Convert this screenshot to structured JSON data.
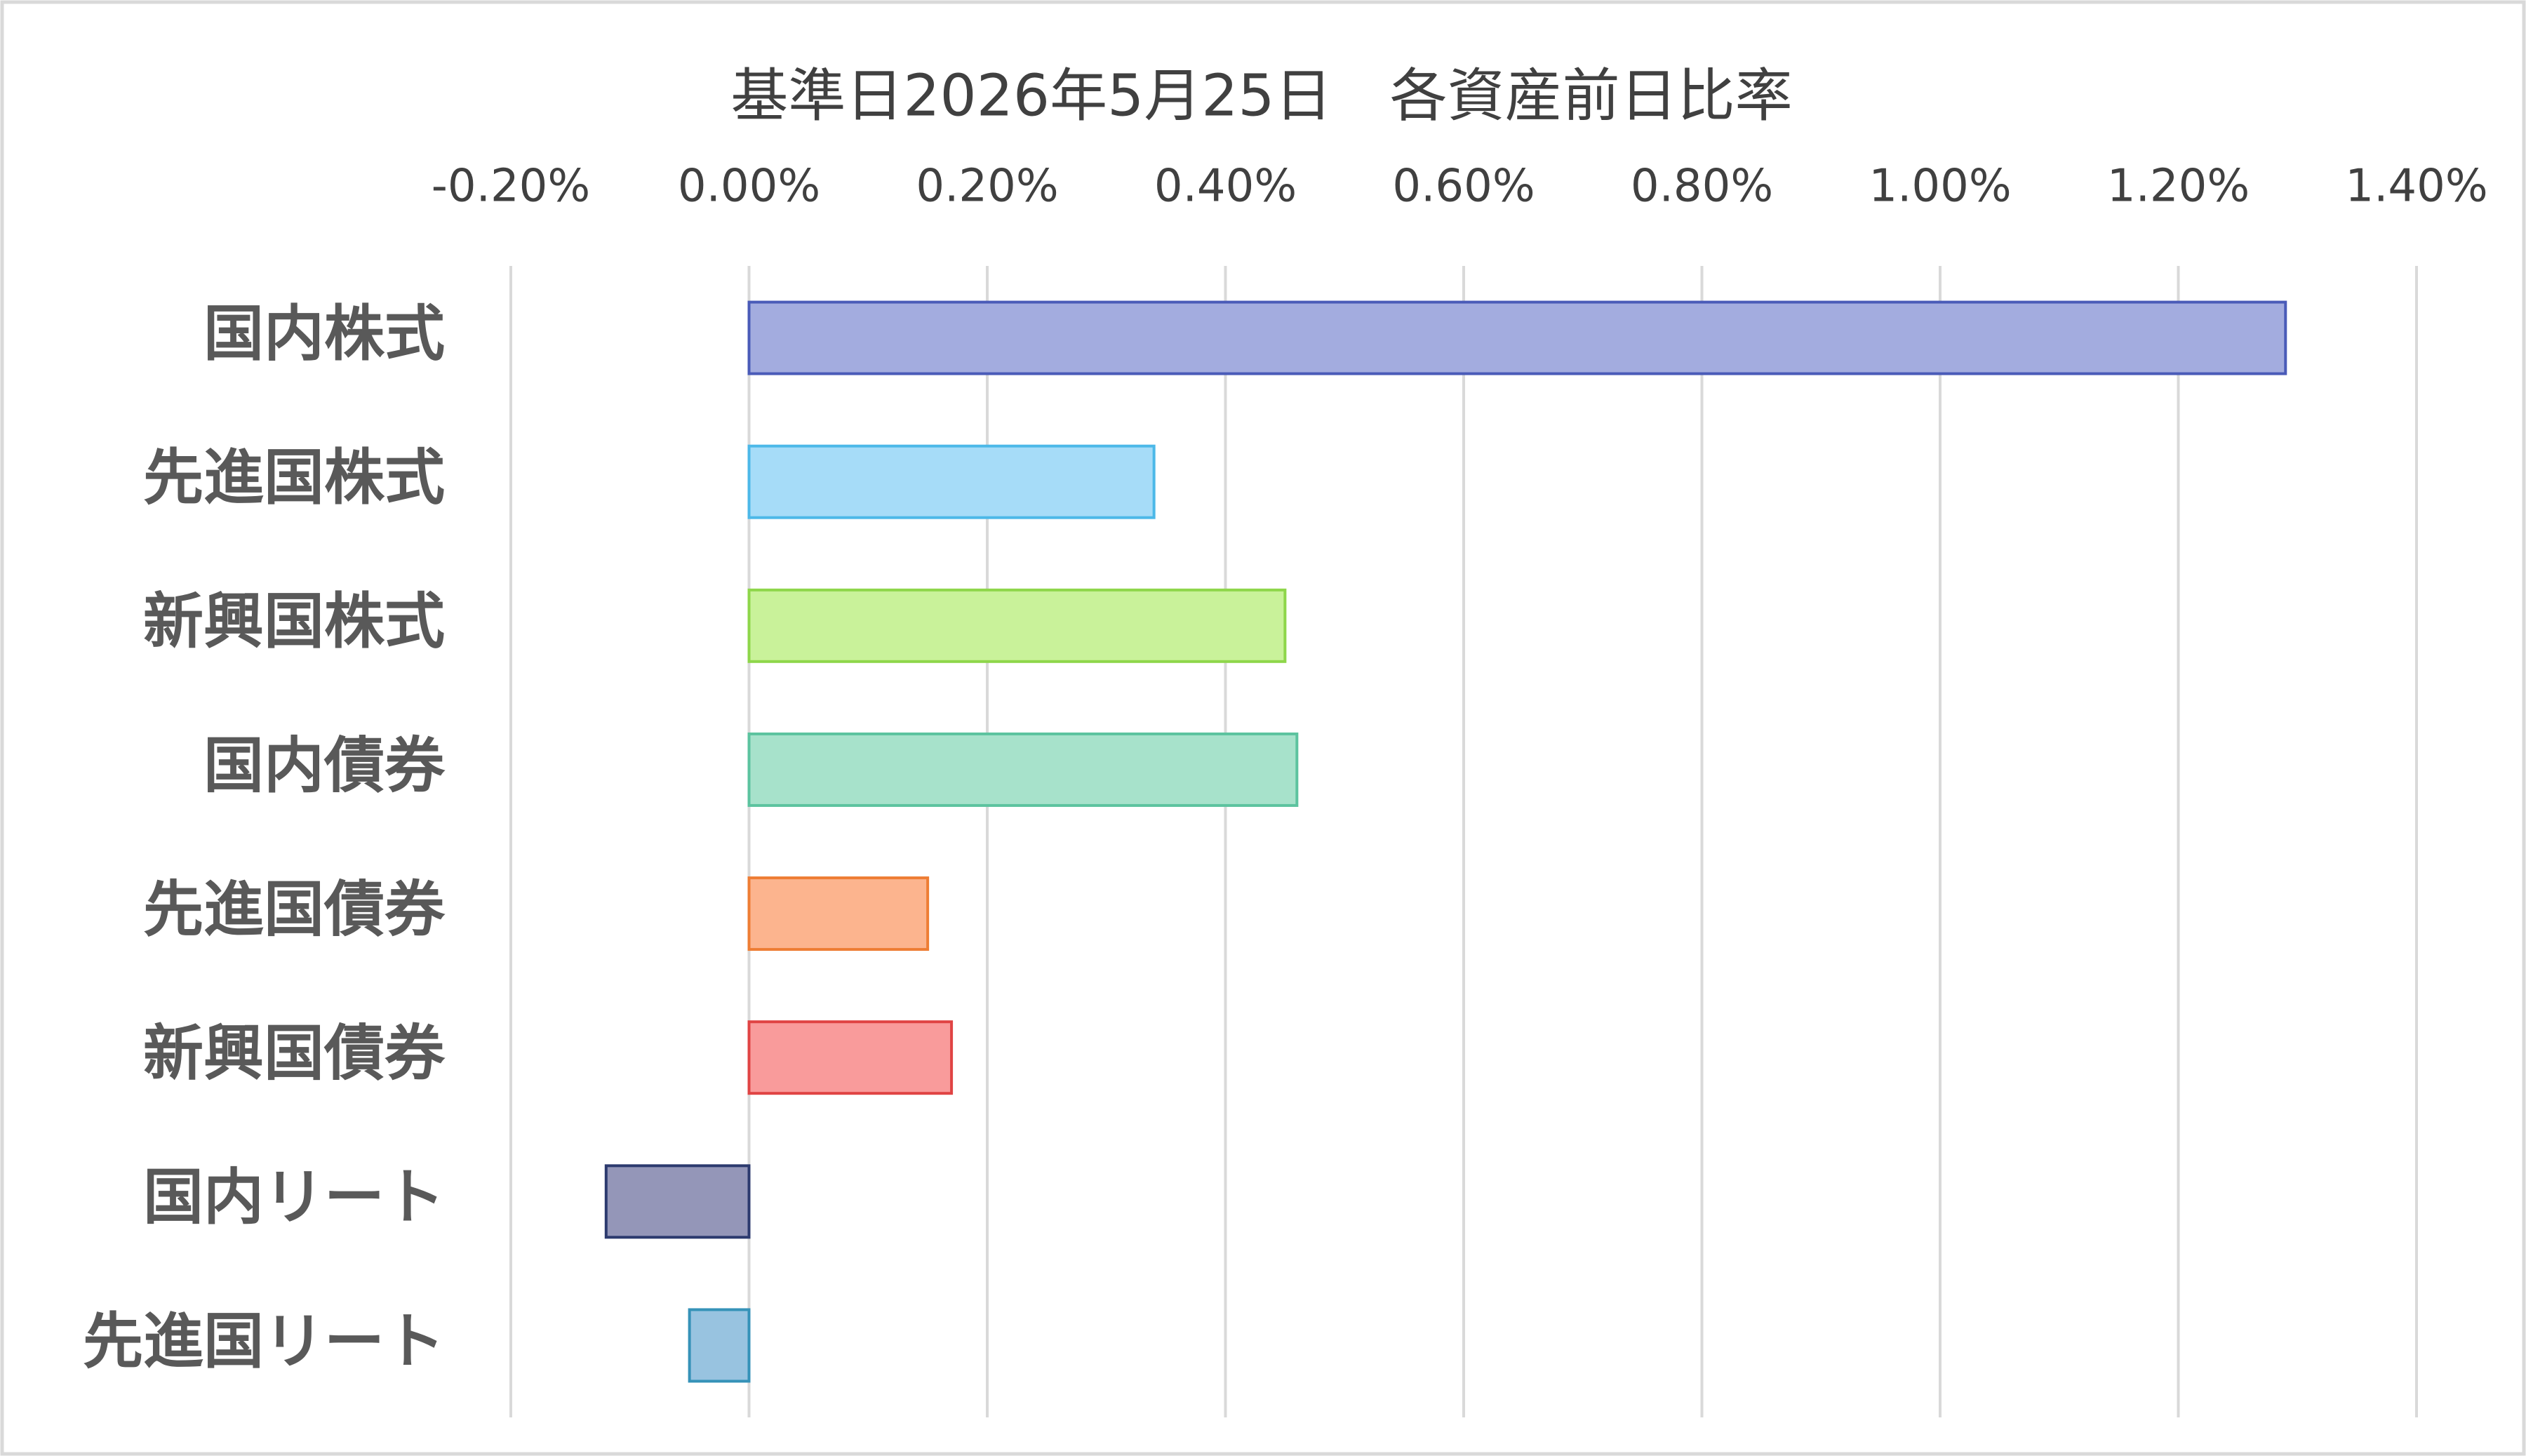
{
  "chart_data": {
    "type": "hbar",
    "title": "基準日2026年5月25日　各資産前日比率",
    "categories": [
      "国内株式",
      "先進国株式",
      "新興国株式",
      "国内債券",
      "先進国債券",
      "新興国債券",
      "国内リート",
      "先進国リート"
    ],
    "values": [
      1.29,
      0.34,
      0.45,
      0.46,
      0.15,
      0.17,
      -0.12,
      -0.05
    ],
    "colors": [
      "#a3acdf",
      "#a6dcf8",
      "#c9f29a",
      "#a7e2cb",
      "#fcb48e",
      "#f99b9b",
      "#9496b8",
      "#98c3e0"
    ],
    "edge_colors": [
      "#4a5bb8",
      "#4cb8e8",
      "#8ed64a",
      "#5cc39f",
      "#ee7d34",
      "#e04444",
      "#2c3a6e",
      "#3592b8"
    ],
    "xlim": [
      -0.2,
      1.4
    ],
    "xticks": [
      {
        "value": -0.2,
        "label": "-0.20%"
      },
      {
        "value": 0,
        "label": "0.00%"
      },
      {
        "value": 0.2,
        "label": "0.20%"
      },
      {
        "value": 0.4,
        "label": "0.40%"
      },
      {
        "value": 0.6,
        "label": "0.60%"
      },
      {
        "value": 0.8,
        "label": "0.80%"
      },
      {
        "value": 1.0,
        "label": "1.00%"
      },
      {
        "value": 1.2,
        "label": "1.20%"
      },
      {
        "value": 1.4,
        "label": "1.40%"
      }
    ],
    "grid": true
  }
}
